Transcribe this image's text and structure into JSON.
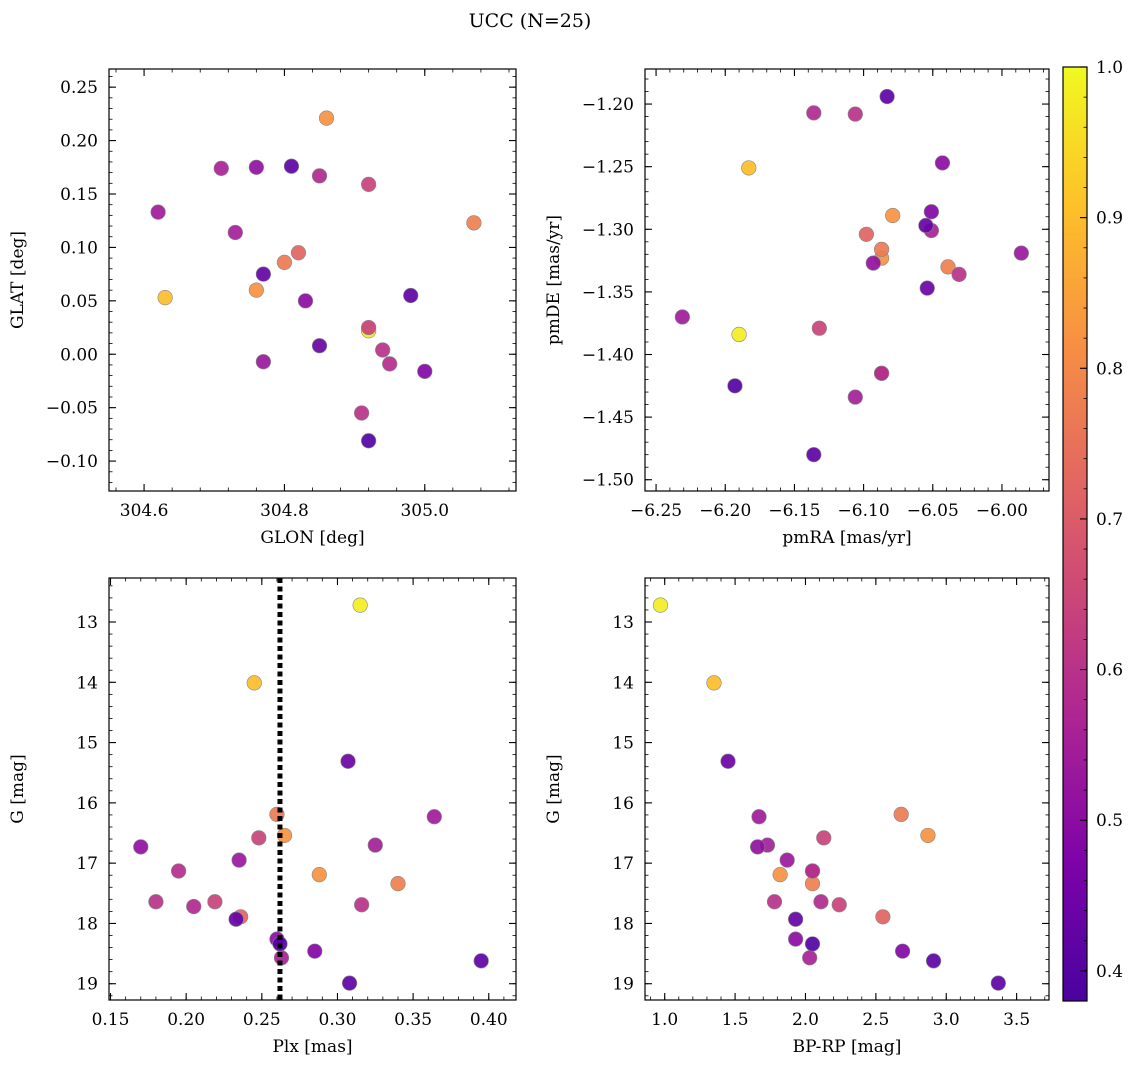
{
  "figure": {
    "title": "UCC (N=25)"
  },
  "colorbar": {
    "range": [
      0.38,
      1.0
    ],
    "ticks": [
      0.4,
      0.5,
      0.6,
      0.7,
      0.8,
      0.9,
      1.0
    ],
    "tick_labels": [
      "0.4",
      "0.5",
      "0.6",
      "0.7",
      "0.8",
      "0.9",
      "1.0"
    ],
    "colormap": "plasma"
  },
  "chart_data": [
    {
      "type": "scatter",
      "id": "glon-glat",
      "title": "",
      "xlabel": "GLON [deg]",
      "ylabel": "GLAT [deg]",
      "xlim": [
        304.55,
        305.13
      ],
      "ylim": [
        -0.128,
        0.267
      ],
      "y_inverted": false,
      "xticks": [
        304.6,
        304.8,
        305.0
      ],
      "xtick_labels": [
        "304.6",
        "304.8",
        "305.0"
      ],
      "yticks": [
        -0.1,
        -0.05,
        0.0,
        0.05,
        0.1,
        0.15,
        0.2,
        0.25
      ],
      "ytick_labels": [
        "−0.10",
        "−0.05",
        "0.00",
        "0.05",
        "0.10",
        "0.15",
        "0.20",
        "0.25"
      ],
      "x": [
        304.92,
        304.63,
        304.76,
        304.86,
        305.07,
        304.8,
        304.82,
        304.92,
        304.92,
        304.94,
        304.91,
        304.95,
        304.85,
        304.71,
        304.73,
        304.62,
        304.77,
        304.76,
        304.83,
        305.0,
        304.85,
        304.77,
        304.98,
        304.81,
        304.92
      ],
      "y": [
        0.022,
        0.053,
        0.06,
        0.221,
        0.123,
        0.086,
        0.095,
        0.159,
        0.025,
        0.004,
        -0.055,
        -0.009,
        0.167,
        0.174,
        0.114,
        0.133,
        -0.007,
        0.175,
        0.05,
        -0.016,
        0.008,
        0.075,
        0.055,
        0.176,
        -0.081
      ],
      "grid": false
    },
    {
      "type": "scatter",
      "id": "pm",
      "title": "",
      "xlabel": "pmRA [mas/yr]",
      "ylabel": "pmDE [mas/yr]",
      "xlim": [
        -6.258,
        -5.966
      ],
      "ylim": [
        -1.509,
        -1.172
      ],
      "y_inverted": false,
      "xticks": [
        -6.25,
        -6.2,
        -6.15,
        -6.1,
        -6.05,
        -6.0
      ],
      "xtick_labels": [
        "−6.25",
        "−6.20",
        "−6.15",
        "−6.10",
        "−6.05",
        "−6.00"
      ],
      "yticks": [
        -1.5,
        -1.45,
        -1.4,
        -1.35,
        -1.3,
        -1.25,
        -1.2
      ],
      "ytick_labels": [
        "−1.50",
        "−1.45",
        "−1.40",
        "−1.35",
        "−1.30",
        "−1.25",
        "−1.20"
      ],
      "x": [
        -6.19,
        -6.183,
        -6.087,
        -6.079,
        -6.039,
        -6.087,
        -6.098,
        -6.087,
        -6.132,
        -6.031,
        -6.106,
        -6.087,
        -6.136,
        -6.051,
        -6.106,
        -6.231,
        -5.986,
        -6.093,
        -6.043,
        -6.051,
        -6.054,
        -6.055,
        -6.136,
        -6.083,
        -6.193
      ],
      "y": [
        -1.384,
        -1.251,
        -1.323,
        -1.289,
        -1.33,
        -1.316,
        -1.304,
        -1.415,
        -1.379,
        -1.336,
        -1.208,
        -1.415,
        -1.207,
        -1.301,
        -1.434,
        -1.37,
        -1.319,
        -1.327,
        -1.247,
        -1.286,
        -1.347,
        -1.297,
        -1.48,
        -1.194,
        -1.425
      ],
      "grid": false
    },
    {
      "type": "scatter",
      "id": "plx-g",
      "title": "",
      "xlabel": "Plx [mas]",
      "ylabel": "G [mag]",
      "xlim": [
        0.149,
        0.418
      ],
      "ylim": [
        19.27,
        12.27
      ],
      "y_inverted": true,
      "xticks": [
        0.15,
        0.2,
        0.25,
        0.3,
        0.35,
        0.4
      ],
      "xtick_labels": [
        "0.15",
        "0.20",
        "0.25",
        "0.30",
        "0.35",
        "0.40"
      ],
      "yticks": [
        13,
        14,
        15,
        16,
        17,
        18,
        19
      ],
      "ytick_labels": [
        "13",
        "14",
        "15",
        "16",
        "17",
        "18",
        "19"
      ],
      "x": [
        0.315,
        0.245,
        0.288,
        0.265,
        0.34,
        0.26,
        0.236,
        0.219,
        0.248,
        0.316,
        0.18,
        0.195,
        0.205,
        0.263,
        0.325,
        0.364,
        0.235,
        0.17,
        0.26,
        0.285,
        0.307,
        0.233,
        0.395,
        0.308,
        0.262
      ],
      "y": [
        12.72,
        14.01,
        17.19,
        16.54,
        17.34,
        16.19,
        17.89,
        17.64,
        16.58,
        17.69,
        17.64,
        17.13,
        17.72,
        18.57,
        16.7,
        16.23,
        16.95,
        16.73,
        18.26,
        18.46,
        15.31,
        17.93,
        18.62,
        18.99,
        18.34
      ],
      "reference_line": {
        "x": 0.262,
        "style": "dotted"
      },
      "grid": false
    },
    {
      "type": "scatter",
      "id": "color-g",
      "title": "",
      "xlabel": "BP-RP [mag]",
      "ylabel": "G [mag]",
      "xlim": [
        0.86,
        3.73
      ],
      "ylim": [
        19.27,
        12.27
      ],
      "y_inverted": true,
      "xticks": [
        1.0,
        1.5,
        2.0,
        2.5,
        3.0,
        3.5
      ],
      "xtick_labels": [
        "1.0",
        "1.5",
        "2.0",
        "2.5",
        "3.0",
        "3.5"
      ],
      "yticks": [
        13,
        14,
        15,
        16,
        17,
        18,
        19
      ],
      "ytick_labels": [
        "13",
        "14",
        "15",
        "16",
        "17",
        "18",
        "19"
      ],
      "x": [
        0.97,
        1.35,
        1.82,
        2.87,
        2.05,
        2.68,
        2.55,
        2.24,
        2.13,
        2.05,
        1.78,
        2.05,
        2.11,
        2.03,
        1.73,
        1.67,
        1.87,
        1.66,
        1.93,
        2.69,
        1.45,
        1.93,
        2.91,
        3.37,
        2.05
      ],
      "y": [
        12.72,
        14.01,
        17.19,
        16.54,
        17.34,
        16.19,
        17.89,
        17.69,
        16.58,
        17.13,
        17.64,
        17.13,
        17.64,
        18.57,
        16.7,
        16.23,
        16.95,
        16.73,
        18.26,
        18.46,
        15.31,
        17.93,
        18.62,
        18.99,
        18.34
      ],
      "grid": false
    }
  ],
  "probabilities": [
    0.98,
    0.9,
    0.82,
    0.82,
    0.78,
    0.77,
    0.72,
    0.64,
    0.64,
    0.6,
    0.6,
    0.59,
    0.58,
    0.56,
    0.55,
    0.54,
    0.53,
    0.51,
    0.5,
    0.48,
    0.44,
    0.43,
    0.42,
    0.42,
    0.4
  ]
}
